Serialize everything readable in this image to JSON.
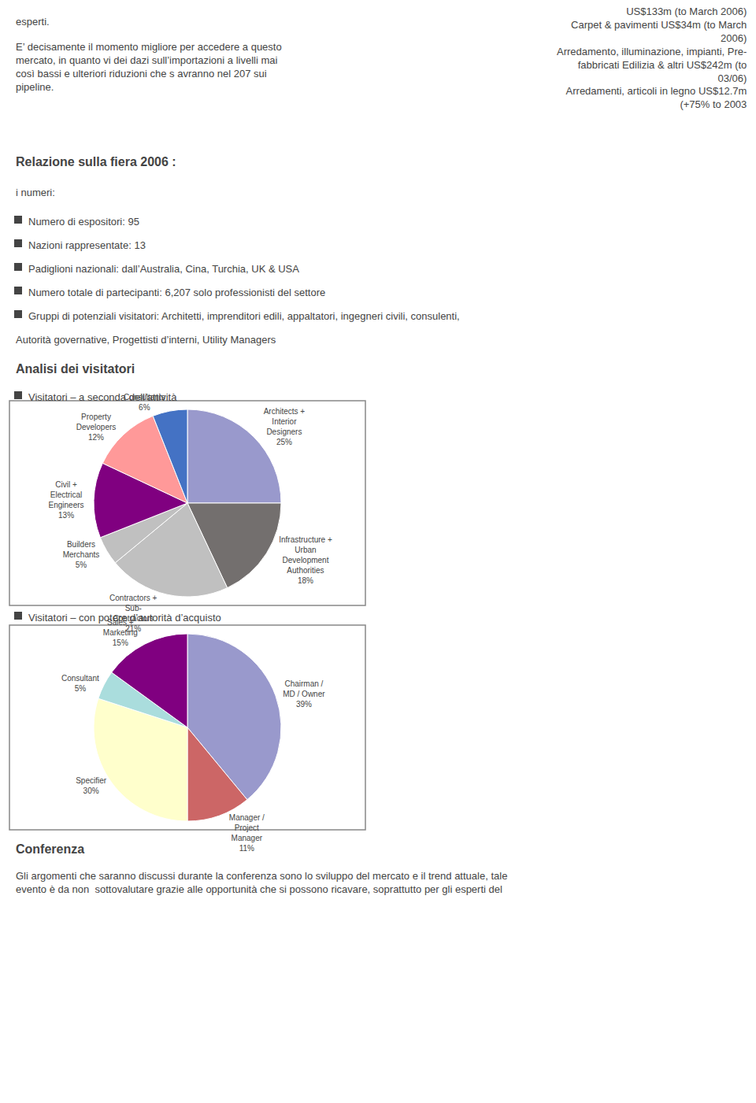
{
  "chart_data": [
    {
      "type": "pie",
      "title": "Visitatori – a seconda dell’attività",
      "categories": [
        "Architects +\nInterior\nDesigners",
        "Infrastructure +\nUrban\nDevelopment\nAuthorities",
        "Contractors +\nSub-\nContractors",
        "Builders\nMerchants",
        "Civil +\nElectrical\nEngineers",
        "Property\nDevelopers",
        "Consultants"
      ],
      "values": [
        25,
        18,
        21,
        5,
        13,
        12,
        6
      ],
      "value_labels": [
        "25%",
        "18%",
        "21%",
        "5%",
        "13%",
        "12%",
        "6%"
      ],
      "colors": [
        "#9999CC",
        "#736F6E",
        "#C0C0C0",
        "#C0C0C0",
        "#800080",
        "#FF9999",
        "#4472C4"
      ],
      "data_labels": true,
      "annotations": [
        "esperti.",
        "US$133m (to March 2006)\nCarpet & pavimenti US$34m (to March\n2006)\nArredamento, illuminazione, impianti, Pre-\nfabbricati Edilizia & altri US$242m (to\n03/06)\nArredamenti, articoli in legno US$12.7m\n(+75% to 2003",
        "E’ decisamente il momento migliore per accedere a questo\nmercato, in quanto vi dei dazi sull’importazioni a livelli mai\ncosì bassi e ulteriori riduzioni che s avranno nel 207 sui\npipeline.",
        "Relazione sulla fiera 2006 :",
        "i numeri:",
        "Numero di espositori: 95",
        "Nazioni rappresentate: 13",
        "Padiglioni nazionali: dall’Australia, Cina, Turchia, UK & USA",
        "Numero totale di partecipanti: 6,207 solo professionisti del settore",
        "Gruppi di potenziali visitatori: Architetti, imprenditori edili, appaltatori, ingegneri civili, consulenti,",
        "Autorità governative, Progettisti d’interni, Utility Managers",
        "Analisi dei visitatori"
      ]
    },
    {
      "type": "pie",
      "title": "Visitatori – con potere d’autorità d’acquisto",
      "categories": [
        "Chairman /\nMD / Owner",
        "Manager /\nProject\nManager",
        "Specifier",
        "Consultant",
        "Sales +\nMarketing"
      ],
      "values": [
        39,
        11,
        30,
        5,
        15
      ],
      "value_labels": [
        "39%",
        "11%",
        "30%",
        "5%",
        "15%"
      ],
      "colors": [
        "#9999CC",
        "#CC6666",
        "#FFFFCC",
        "#AADDDD",
        "#800080"
      ],
      "data_labels": true,
      "annotations": [
        "Conferenza",
        "Gli argomenti che saranno discussi durante la conferenza sono lo sviluppo del mercato e il trend attuale, tale\nevento è da non  sottovalutare grazie alle opportunità che si possono ricavare, soprattutto per gli esperti del"
      ]
    }
  ]
}
